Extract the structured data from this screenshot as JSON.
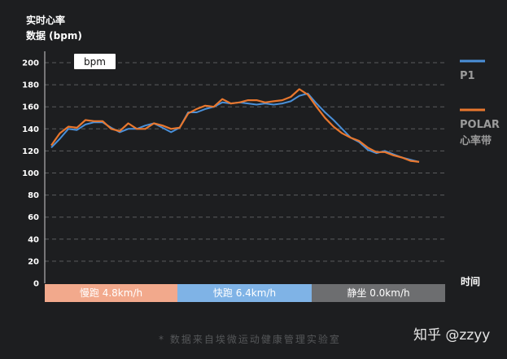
{
  "chart_data": {
    "type": "line",
    "ylabel_line1": "实时心率",
    "ylabel_line2": "数据 (bpm)",
    "xlabel": "时间",
    "ylim": [
      0,
      200
    ],
    "yticks": [
      0,
      20,
      40,
      60,
      80,
      100,
      120,
      140,
      160,
      180,
      200
    ],
    "unit_box": "bpm",
    "x": [
      0,
      1,
      2,
      3,
      4,
      5,
      6,
      7,
      8,
      9,
      10,
      11,
      12,
      13,
      14,
      15,
      16,
      17,
      18,
      19,
      20,
      21,
      22,
      23,
      24,
      25,
      26,
      27,
      28,
      29,
      30,
      31,
      32,
      33,
      34,
      35,
      36,
      37,
      38,
      39,
      40,
      41,
      42,
      43
    ],
    "series": [
      {
        "name": "P1",
        "color": "#4a90d9",
        "values": [
          123,
          131,
          140,
          139,
          144,
          146,
          146,
          141,
          137,
          140,
          140,
          143,
          145,
          141,
          137,
          141,
          155,
          155,
          158,
          160,
          164,
          163,
          164,
          163,
          162,
          163,
          162,
          163,
          165,
          170,
          172,
          163,
          155,
          148,
          140,
          132,
          128,
          121,
          118,
          120,
          117,
          114,
          112,
          110
        ]
      },
      {
        "name": "POLAR",
        "sublabel": "心率带",
        "color": "#e8772e",
        "values": [
          125,
          136,
          142,
          141,
          148,
          147,
          147,
          140,
          138,
          145,
          140,
          140,
          145,
          143,
          140,
          141,
          154,
          158,
          161,
          160,
          167,
          163,
          164,
          166,
          166,
          164,
          165,
          166,
          169,
          176,
          171,
          160,
          150,
          142,
          136,
          132,
          129,
          123,
          119,
          119,
          116,
          114,
          111,
          110
        ]
      }
    ],
    "phases": [
      {
        "label": "慢跑 4.8km/h",
        "color": "#f2a98c"
      },
      {
        "label": "快跑 6.4km/h",
        "color": "#7fb3e6"
      },
      {
        "label": "静坐 0.0km/h",
        "color": "#6d6e70"
      }
    ],
    "footnote": "* 数据来自埃微运动健康管理实验室",
    "watermark": "知乎 @zzyy"
  }
}
